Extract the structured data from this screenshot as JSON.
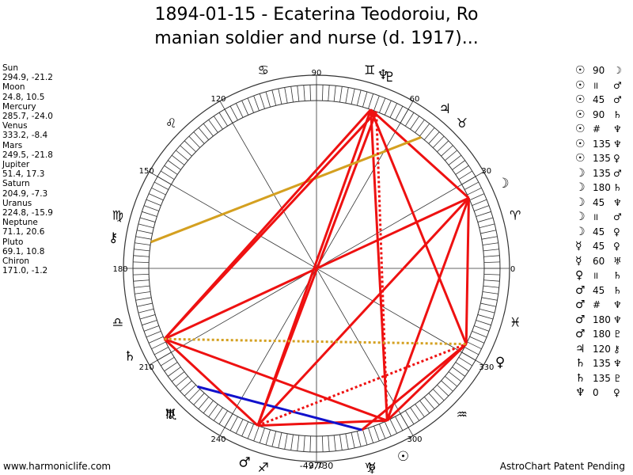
{
  "title": {
    "line1": "1894-01-15 - Ecaterina Teodoroiu, Ro",
    "line2": "manian soldier and nurse (d. 1917)..."
  },
  "planets": [
    {
      "name": "Sun",
      "coords": "294.9, -21.2"
    },
    {
      "name": "Moon",
      "coords": "24.8, 10.5"
    },
    {
      "name": "Mercury",
      "coords": "285.7, -24.0"
    },
    {
      "name": "Venus",
      "coords": "333.2, -8.4"
    },
    {
      "name": "Mars",
      "coords": "249.5, -21.8"
    },
    {
      "name": "Jupiter",
      "coords": "51.4, 17.3"
    },
    {
      "name": "Saturn",
      "coords": "204.9, -7.3"
    },
    {
      "name": "Uranus",
      "coords": "224.8, -15.9"
    },
    {
      "name": "Neptune",
      "coords": "71.1, 20.6"
    },
    {
      "name": "Pluto",
      "coords": "69.1, 10.8"
    },
    {
      "name": "Chiron",
      "coords": "171.0, -1.2"
    }
  ],
  "aspects": [
    {
      "p1": "☉",
      "aspect": "90",
      "p2": "☽"
    },
    {
      "p1": "☉",
      "aspect": "॥",
      "p2": "♂"
    },
    {
      "p1": "☉",
      "aspect": "45",
      "p2": "♂"
    },
    {
      "p1": "☉",
      "aspect": "90",
      "p2": "♄"
    },
    {
      "p1": "☉",
      "aspect": "#",
      "p2": "♆"
    },
    {
      "p1": "☉",
      "aspect": "135",
      "p2": "♆"
    },
    {
      "p1": "☉",
      "aspect": "135",
      "p2": "♀"
    },
    {
      "p1": "☽",
      "aspect": "135",
      "p2": "♂"
    },
    {
      "p1": "☽",
      "aspect": "180",
      "p2": "♄"
    },
    {
      "p1": "☽",
      "aspect": "45",
      "p2": "♆"
    },
    {
      "p1": "☽",
      "aspect": "॥",
      "p2": "♂"
    },
    {
      "p1": "☽",
      "aspect": "45",
      "p2": "♀"
    },
    {
      "p1": "☿",
      "aspect": "45",
      "p2": "♀"
    },
    {
      "p1": "☿",
      "aspect": "60",
      "p2": "♅"
    },
    {
      "p1": "♀",
      "aspect": "॥",
      "p2": "♄"
    },
    {
      "p1": "♂",
      "aspect": "45",
      "p2": "♄"
    },
    {
      "p1": "♂",
      "aspect": "#",
      "p2": "♆"
    },
    {
      "p1": "♂",
      "aspect": "180",
      "p2": "♆"
    },
    {
      "p1": "♂",
      "aspect": "180",
      "p2": "♇"
    },
    {
      "p1": "♃",
      "aspect": "120",
      "p2": "⚷"
    },
    {
      "p1": "♄",
      "aspect": "135",
      "p2": "♆"
    },
    {
      "p1": "♄",
      "aspect": "135",
      "p2": "♇"
    },
    {
      "p1": "♆",
      "aspect": "0",
      "p2": "♀"
    }
  ],
  "wheel": {
    "degree_labels": [
      "0",
      "30",
      "60",
      "90",
      "120",
      "150",
      "180",
      "210",
      "240",
      "270",
      "300",
      "330"
    ],
    "center_readout": "-49,730",
    "zodiac_signs": [
      "♈",
      "♉",
      "♊",
      "♋",
      "♌",
      "♍",
      "♎",
      "♏",
      "♐",
      "♑",
      "♒",
      "♓"
    ],
    "planet_glyphs": [
      {
        "glyph": "☉",
        "lon": 294.9
      },
      {
        "glyph": "☽",
        "lon": 24.8
      },
      {
        "glyph": "☿",
        "lon": 285.7
      },
      {
        "glyph": "♀",
        "lon": 333.2
      },
      {
        "glyph": "♂",
        "lon": 249.5
      },
      {
        "glyph": "♃",
        "lon": 51.4
      },
      {
        "glyph": "♄",
        "lon": 204.9
      },
      {
        "glyph": "♅",
        "lon": 224.8
      },
      {
        "glyph": "♆",
        "lon": 71.1
      },
      {
        "glyph": "♇",
        "lon": 69.1
      },
      {
        "glyph": "⚷",
        "lon": 171.0
      }
    ],
    "aspect_lines": [
      {
        "a": 294.9,
        "b": 24.8,
        "color": "#ee1111",
        "style": "solid"
      },
      {
        "a": 294.9,
        "b": 249.5,
        "color": "#ee1111",
        "style": "solid"
      },
      {
        "a": 294.9,
        "b": 204.9,
        "color": "#ee1111",
        "style": "solid"
      },
      {
        "a": 294.9,
        "b": 71.1,
        "color": "#ee1111",
        "style": "solid"
      },
      {
        "a": 294.9,
        "b": 333.2,
        "color": "#ee1111",
        "style": "solid"
      },
      {
        "a": 24.8,
        "b": 249.5,
        "color": "#ee1111",
        "style": "solid"
      },
      {
        "a": 24.8,
        "b": 204.9,
        "color": "#ee1111",
        "style": "solid"
      },
      {
        "a": 24.8,
        "b": 71.1,
        "color": "#ee1111",
        "style": "solid"
      },
      {
        "a": 24.8,
        "b": 333.2,
        "color": "#ee1111",
        "style": "solid"
      },
      {
        "a": 285.7,
        "b": 333.2,
        "color": "#ee1111",
        "style": "solid"
      },
      {
        "a": 285.7,
        "b": 224.8,
        "color": "#1111cc",
        "style": "solid"
      },
      {
        "a": 249.5,
        "b": 204.9,
        "color": "#ee1111",
        "style": "solid"
      },
      {
        "a": 249.5,
        "b": 71.1,
        "color": "#ee1111",
        "style": "solid"
      },
      {
        "a": 249.5,
        "b": 69.1,
        "color": "#ee1111",
        "style": "solid"
      },
      {
        "a": 51.4,
        "b": 171.0,
        "color": "#d4a020",
        "style": "solid"
      },
      {
        "a": 204.9,
        "b": 71.1,
        "color": "#ee1111",
        "style": "solid"
      },
      {
        "a": 204.9,
        "b": 69.1,
        "color": "#ee1111",
        "style": "solid"
      },
      {
        "a": 71.1,
        "b": 333.2,
        "color": "#ee1111",
        "style": "solid"
      },
      {
        "a": 294.9,
        "b": 69.1,
        "color": "#ee1111",
        "style": "dotted"
      },
      {
        "a": 249.5,
        "b": 333.2,
        "color": "#ee1111",
        "style": "dotted"
      },
      {
        "a": 204.9,
        "b": 333.2,
        "color": "#d4a020",
        "style": "dotted"
      }
    ]
  },
  "footer": {
    "left": "www.harmoniclife.com",
    "right": "AstroChart Patent Pending"
  }
}
